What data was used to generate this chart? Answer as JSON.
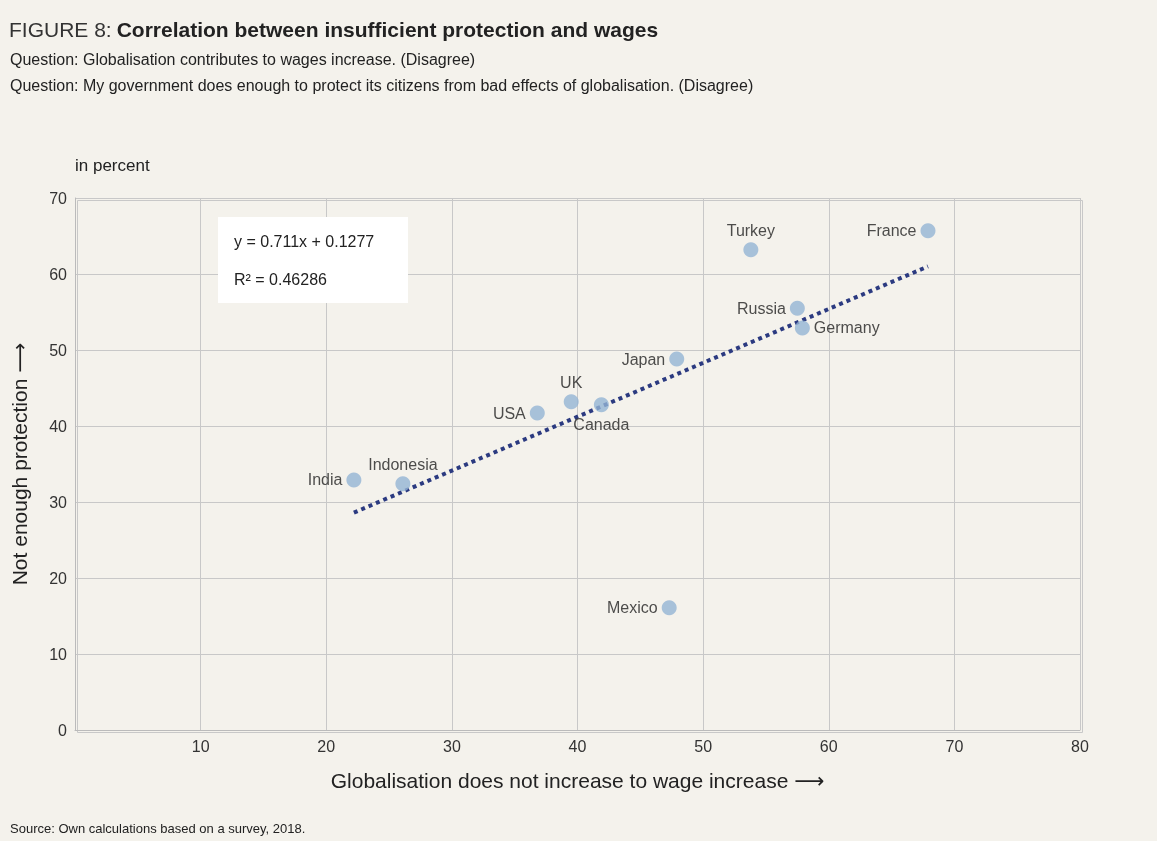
{
  "chart_data": {
    "type": "scatter",
    "title": "FIGURE 8: Correlation between insufficient protection and wages",
    "subtitle": "Question: Globalisation contributes to wages increase. (Disagree)\nQuestion: My government does enough to protect its citizens from bad effects of globalisation. (Disagree)",
    "xlabel": "Globalisation does not increase to wage increase ⟶",
    "ylabel": "Not enough protection ⟶",
    "annotations": [
      "in percent",
      "y = 0.711x + 0.1277",
      "R² = 0.46286",
      "Source: Own calculations based on a survey, 2018."
    ],
    "xlim": [
      0,
      80
    ],
    "xticks": [
      10,
      20,
      30,
      40,
      50,
      60,
      70,
      80
    ],
    "ylim": [
      0,
      70
    ],
    "yticks": [
      0,
      10,
      20,
      30,
      40,
      50,
      60,
      70
    ],
    "grid": true,
    "legend": false,
    "marker": "circle",
    "series": [
      {
        "name": "India",
        "color": "#94b4d4",
        "x": [
          22.2
        ],
        "values": [
          32.9
        ]
      },
      {
        "name": "Indonesia",
        "color": "#94b4d4",
        "x": [
          26.1
        ],
        "values": [
          32.4
        ]
      },
      {
        "name": "USA",
        "color": "#94b4d4",
        "x": [
          36.8
        ],
        "values": [
          41.7
        ]
      },
      {
        "name": "UK",
        "color": "#94b4d4",
        "x": [
          39.5
        ],
        "values": [
          43.2
        ]
      },
      {
        "name": "Canada",
        "color": "#94b4d4",
        "x": [
          41.9
        ],
        "values": [
          42.8
        ]
      },
      {
        "name": "Japan",
        "color": "#94b4d4",
        "x": [
          47.9
        ],
        "values": [
          48.8
        ]
      },
      {
        "name": "Mexico",
        "color": "#94b4d4",
        "x": [
          47.3
        ],
        "values": [
          16.1
        ]
      },
      {
        "name": "Turkey",
        "color": "#94b4d4",
        "x": [
          53.8
        ],
        "values": [
          63.2
        ]
      },
      {
        "name": "Russia",
        "color": "#94b4d4",
        "x": [
          57.5
        ],
        "values": [
          55.5
        ]
      },
      {
        "name": "Germany",
        "color": "#94b4d4",
        "x": [
          57.9
        ],
        "values": [
          52.9
        ]
      },
      {
        "name": "France",
        "color": "#94b4d4",
        "x": [
          67.9
        ],
        "values": [
          65.7
        ]
      },
      {
        "type": "line",
        "color": "#2b3a80",
        "line_style": "dotted",
        "marker": "none",
        "x": [
          22.2,
          67.9
        ],
        "values": [
          28.6,
          61.0
        ]
      }
    ]
  }
}
